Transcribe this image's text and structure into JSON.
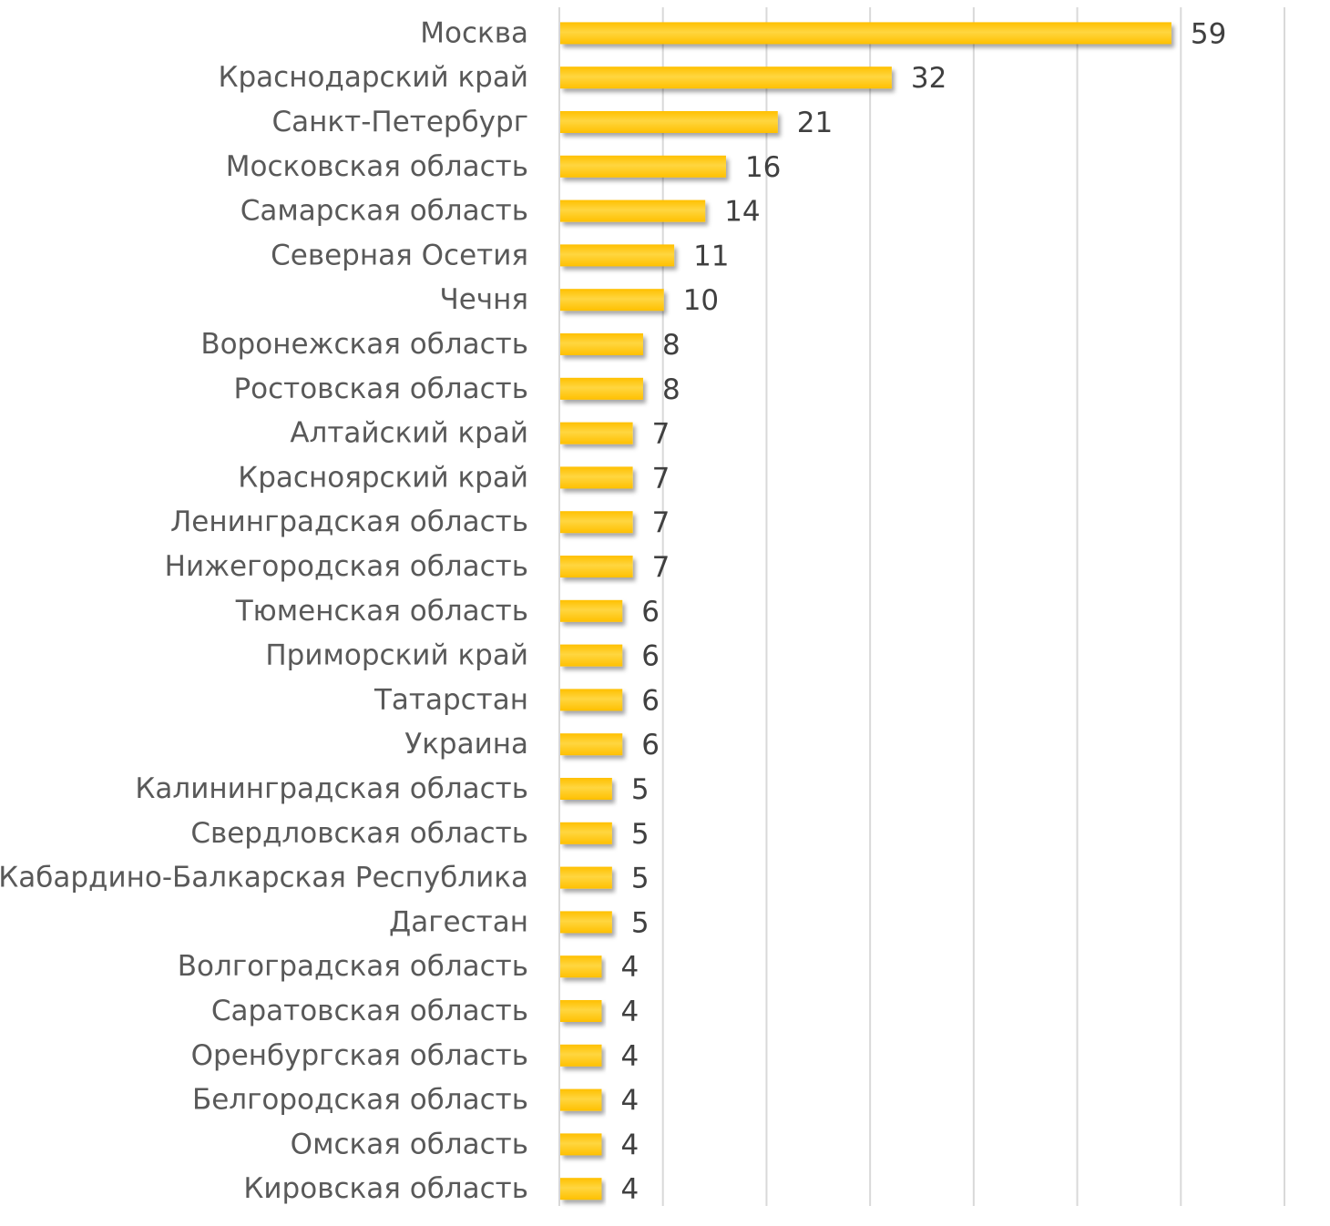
{
  "chart_data": {
    "type": "bar",
    "orientation": "horizontal",
    "title": "",
    "xlabel": "",
    "ylabel": "",
    "xlim": [
      0,
      70
    ],
    "grid": true,
    "legend": "none",
    "colors": {
      "bar": "#FFC000",
      "bar_highlight": "#FFD640",
      "grid": "#D9D9D9",
      "label": "#595959",
      "value": "#404040"
    },
    "categories": [
      "Москва",
      "Краснодарский край",
      "Санкт-Петербург",
      "Московская область",
      "Самарская область",
      "Северная Осетия",
      "Чечня",
      "Воронежская область",
      "Ростовская область",
      "Алтайский край",
      "Красноярский край",
      "Ленинградская область",
      "Нижегородская область",
      "Тюменская область",
      "Приморский край",
      "Татарстан",
      "Украина",
      "Калининградская область",
      "Свердловская область",
      "Кабардино-Балкарская Республика",
      "Дагестан",
      "Волгоградская область",
      "Саратовская область",
      "Оренбургская область",
      "Белгородская область",
      "Омская область",
      "Кировская область"
    ],
    "values": [
      59,
      32,
      21,
      16,
      14,
      11,
      10,
      8,
      8,
      7,
      7,
      7,
      7,
      6,
      6,
      6,
      6,
      5,
      5,
      5,
      5,
      4,
      4,
      4,
      4,
      4,
      4
    ]
  }
}
